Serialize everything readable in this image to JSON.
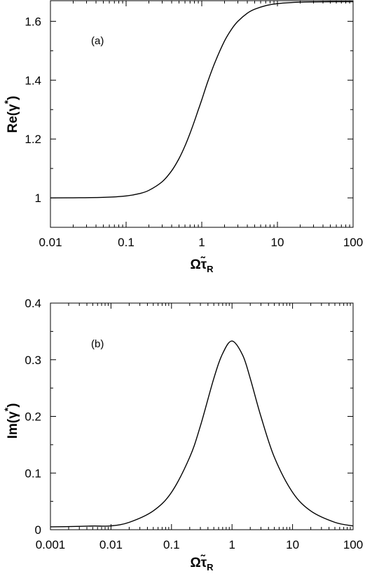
{
  "chart_data": [
    {
      "type": "line",
      "panel_label": "(a)",
      "xlabel_main": "Ωτ̃",
      "xlabel_sub": "R",
      "ylabel_main": "Re(γ",
      "ylabel_sup": "*",
      "ylabel_end": ")",
      "x_scale": "log",
      "xlim": [
        0.01,
        100
      ],
      "ylim": [
        0.9,
        1.67
      ],
      "x_ticks": [
        0.01,
        0.1,
        1,
        10,
        100
      ],
      "x_tick_labels": [
        "0.01",
        "0.1",
        "1",
        "10",
        "100"
      ],
      "y_ticks": [
        1,
        1.2,
        1.4,
        1.6
      ],
      "y_tick_labels": [
        "1",
        "1.2",
        "1.4",
        "1.6"
      ],
      "grid": false,
      "series": [
        {
          "x": [
            0.01,
            0.02,
            0.05,
            0.1,
            0.15,
            0.2,
            0.3,
            0.4,
            0.5,
            0.6,
            0.7,
            0.8,
            0.9,
            1,
            1.2,
            1.5,
            2,
            2.5,
            3,
            4,
            5,
            7,
            10,
            20,
            50,
            100
          ],
          "y": [
            1.0,
            1.0003,
            1.0017,
            1.0066,
            1.0146,
            1.0256,
            1.055,
            1.092,
            1.1333,
            1.1765,
            1.2195,
            1.2607,
            1.2992,
            1.3333,
            1.395,
            1.4615,
            1.5333,
            1.5747,
            1.6,
            1.6275,
            1.641,
            1.6533,
            1.6601,
            1.665,
            1.6664,
            1.6666
          ]
        }
      ]
    },
    {
      "type": "line",
      "panel_label": "(b)",
      "xlabel_main": "Ωτ̃",
      "xlabel_sub": "R",
      "ylabel_main": "Im(γ",
      "ylabel_sup": "*",
      "ylabel_end": ")",
      "x_scale": "log",
      "xlim": [
        0.001,
        100
      ],
      "ylim": [
        0,
        0.4
      ],
      "x_ticks": [
        0.001,
        0.01,
        0.1,
        1,
        10,
        100
      ],
      "x_tick_labels": [
        "0.001",
        "0.01",
        "0.1",
        "1",
        "10",
        "100"
      ],
      "y_ticks": [
        0,
        0.1,
        0.2,
        0.3,
        0.4
      ],
      "y_tick_labels": [
        "0",
        "0.1",
        "0.2",
        "0.3",
        "0.4"
      ],
      "grid": false,
      "series": [
        {
          "x": [
            0.001,
            0.002,
            0.005,
            0.01,
            0.02,
            0.05,
            0.1,
            0.2,
            0.3,
            0.5,
            0.7,
            1,
            1.5,
            2,
            3,
            5,
            10,
            20,
            50,
            100
          ],
          "y": [
            0.005,
            0.0055,
            0.0065,
            0.0067,
            0.013,
            0.0332,
            0.066,
            0.128,
            0.183,
            0.267,
            0.311,
            0.333,
            0.308,
            0.267,
            0.2,
            0.128,
            0.066,
            0.033,
            0.013,
            0.0067
          ]
        }
      ]
    }
  ]
}
